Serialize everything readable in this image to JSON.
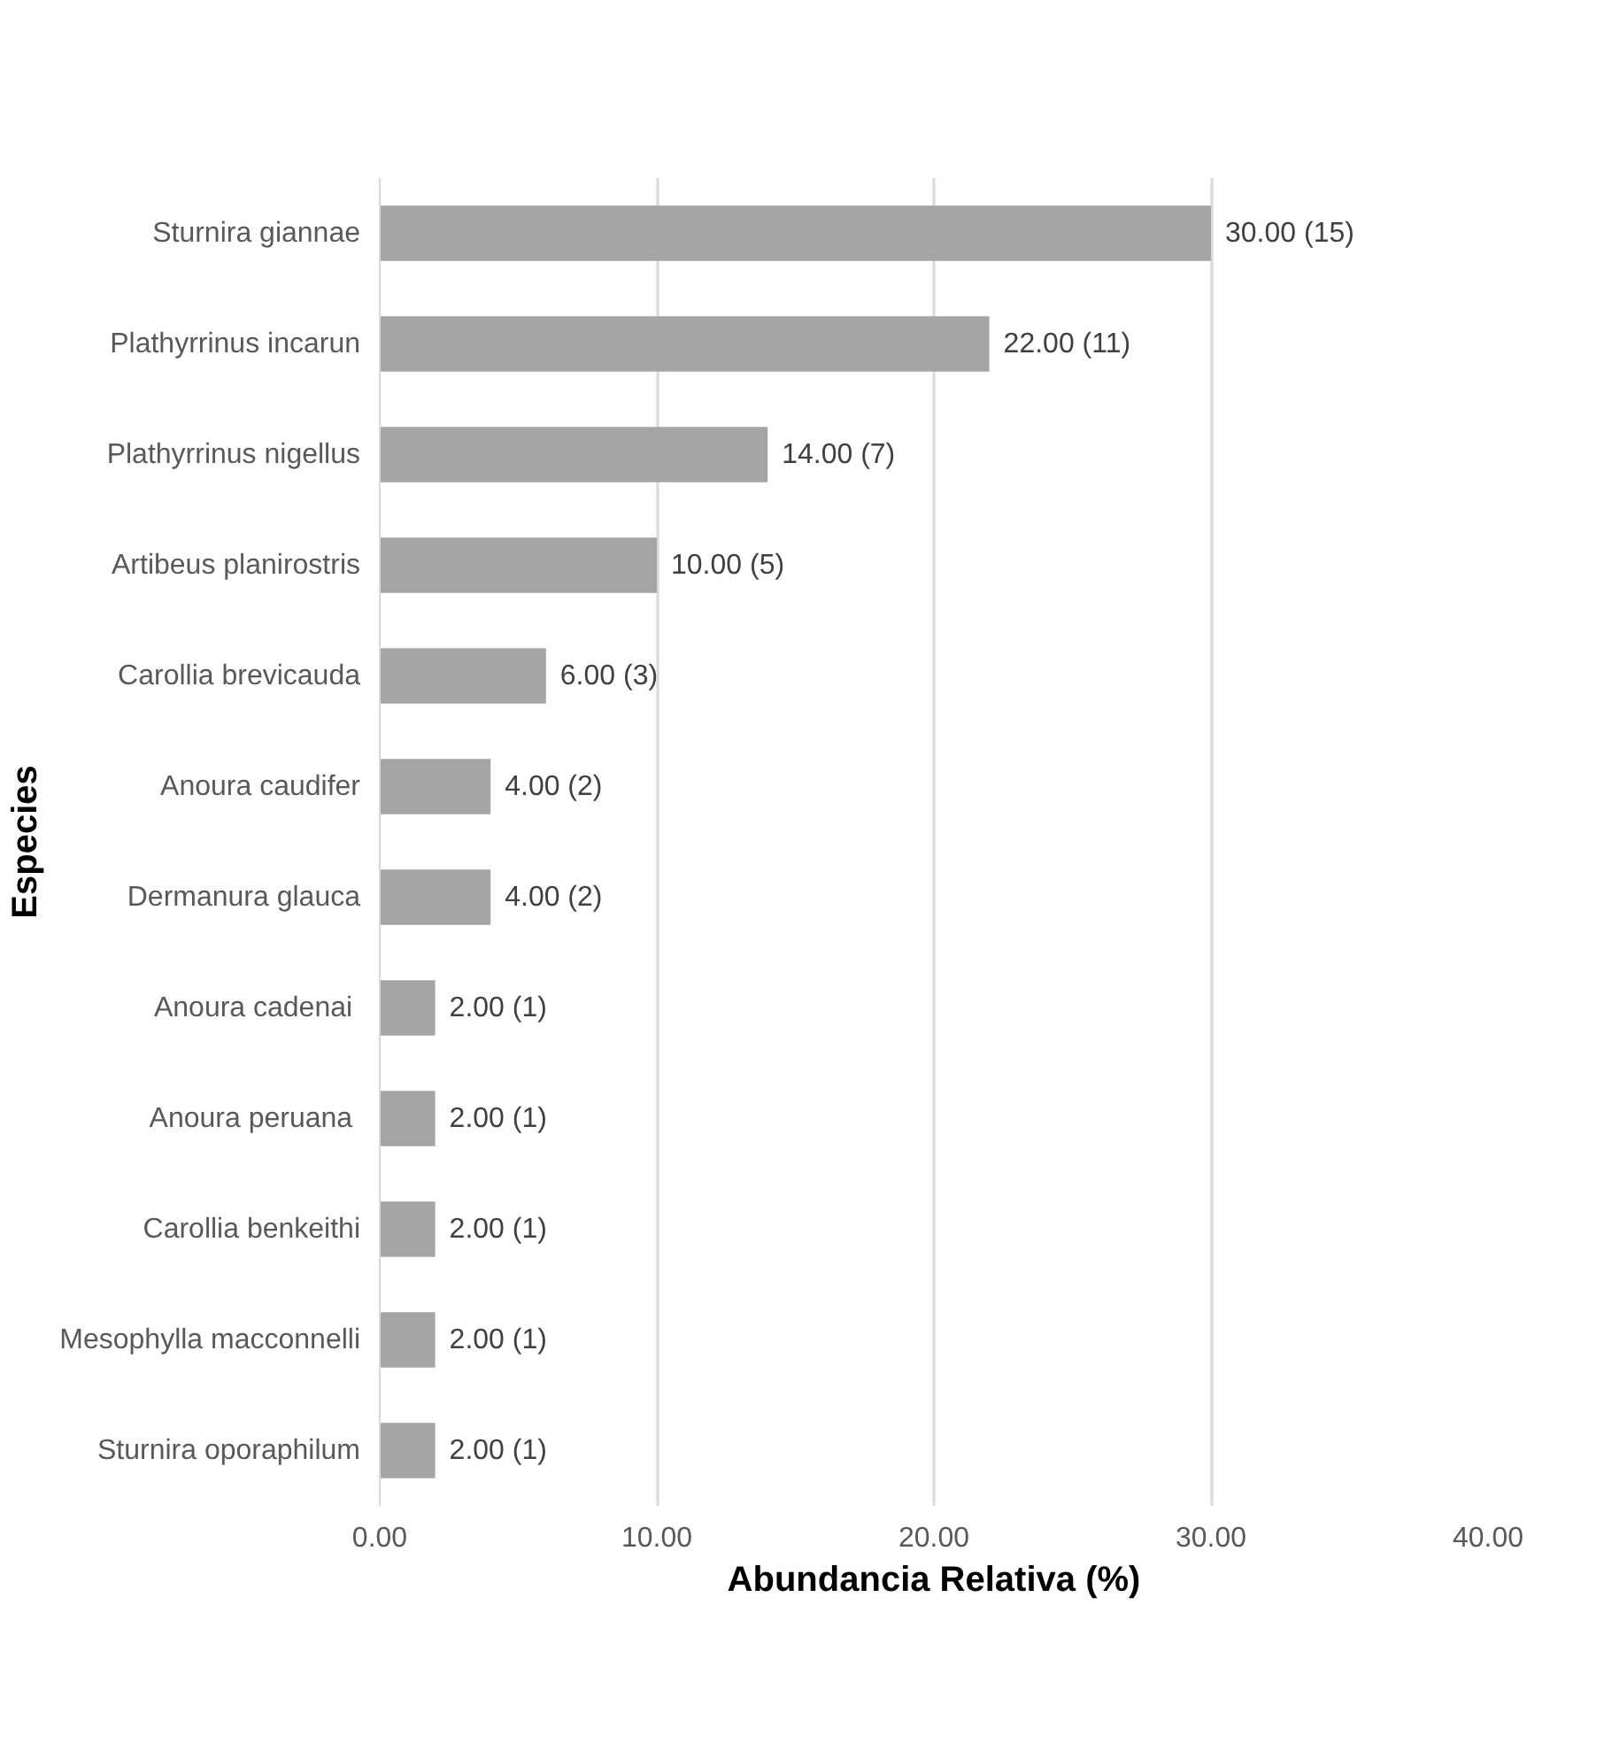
{
  "chart_data": {
    "type": "bar",
    "orientation": "horizontal",
    "xlabel": "Abundancia Relativa (%)",
    "ylabel": "Especies",
    "categories": [
      "Sturnira giannae",
      "Plathyrrinus incarun",
      "Plathyrrinus nigellus",
      "Artibeus planirostris",
      "Carollia brevicauda",
      "Anoura caudifer",
      "Dermanura glauca",
      "Anoura  cadenai",
      "Anoura  peruana",
      "Carollia benkeithi",
      "Mesophylla macconnelli",
      "Sturnira oporaphilum"
    ],
    "values": [
      30,
      22,
      14,
      10,
      6,
      4,
      4,
      2,
      2,
      2,
      2,
      2
    ],
    "value_labels": [
      "30.00 (15)",
      "22.00 (11)",
      "14.00 (7)",
      "10.00 (5)",
      "6.00 (3)",
      "4.00 (2)",
      "4.00 (2)",
      "2.00 (1)",
      "2.00 (1)",
      "2.00 (1)",
      "2.00 (1)",
      "2.00 (1)"
    ],
    "color": "#a5a5a5",
    "xlim": [
      0,
      40
    ],
    "xticks": [
      {
        "value": 0,
        "label": "0.00"
      },
      {
        "value": 10,
        "label": "10.00"
      },
      {
        "value": 20,
        "label": "20.00"
      },
      {
        "value": 30,
        "label": "30.00"
      },
      {
        "value": 40,
        "label": "40.00"
      }
    ],
    "grid": "x"
  }
}
